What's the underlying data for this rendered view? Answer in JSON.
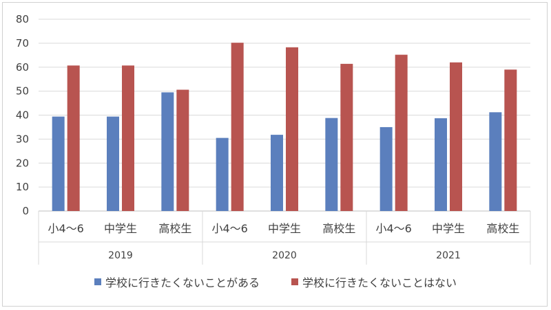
{
  "chart_data": {
    "type": "bar",
    "title": "",
    "xlabel": "",
    "ylabel": "",
    "ylim": [
      0,
      80
    ],
    "yticks": [
      0,
      10,
      20,
      30,
      40,
      50,
      60,
      70,
      80
    ],
    "grid": true,
    "legend_position": "bottom",
    "groups": [
      {
        "label": "2019",
        "categories": [
          "小4～6",
          "中学生",
          "高校生"
        ]
      },
      {
        "label": "2020",
        "categories": [
          "小4～6",
          "中学生",
          "高校生"
        ]
      },
      {
        "label": "2021",
        "categories": [
          "小4～6",
          "中学生",
          "高校生"
        ]
      }
    ],
    "series": [
      {
        "name": "学校に行きたくないことがある",
        "color": "#5b7fbd",
        "values": [
          39.4,
          39.4,
          49.5,
          30.5,
          31.8,
          38.8,
          35.0,
          38.7,
          41.2
        ]
      },
      {
        "name": "学校に行きたくないことはない",
        "color": "#b85450",
        "values": [
          60.7,
          60.7,
          50.6,
          70.2,
          68.3,
          61.4,
          65.2,
          62.0,
          59.0
        ]
      }
    ]
  }
}
